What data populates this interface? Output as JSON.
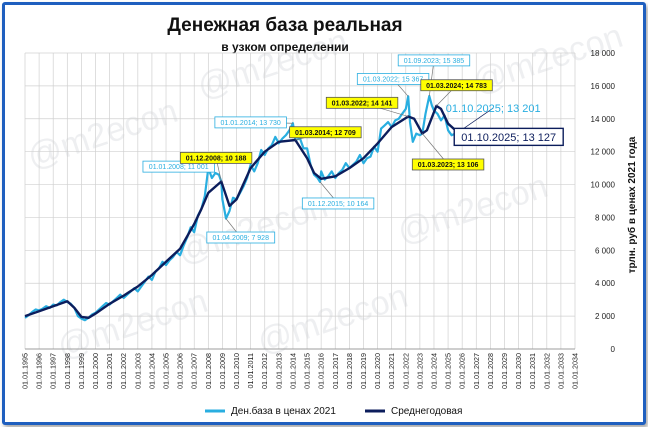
{
  "title": "Денежная база реальная",
  "subtitle": "в узком определении",
  "watermark": "@m2econ",
  "colors": {
    "series1": "#29aee0",
    "series2": "#0c1d5c",
    "highlight": "#ffff00",
    "label_text": "#29aee0",
    "frame": "#1f5fbf"
  },
  "chart_data": {
    "type": "line",
    "ylabel": "трлн. руб в ценах 2021 года",
    "ylim": [
      0,
      18000
    ],
    "yticks": [
      "0",
      "2 000",
      "4 000",
      "6 000",
      "8 000",
      "10 000",
      "12 000",
      "14 000",
      "16 000",
      "18 000"
    ],
    "xrange": [
      1995,
      2034
    ],
    "xticks": [
      "01.01.1995",
      "01.01.1996",
      "01.01.1997",
      "01.01.1998",
      "01.01.1999",
      "01.01.2000",
      "01.01.2001",
      "01.01.2002",
      "01.01.2003",
      "01.01.2004",
      "01.01.2005",
      "01.01.2006",
      "01.01.2007",
      "01.01.2008",
      "01.01.2009",
      "01.01.2010",
      "01.01.2011",
      "01.01.2012",
      "01.01.2013",
      "01.01.2014",
      "01.01.2015",
      "01.01.2016",
      "01.01.2017",
      "01.01.2018",
      "01.01.2019",
      "01.01.2020",
      "01.01.2021",
      "01.01.2022",
      "01.01.2023",
      "01.01.2024",
      "01.01.2025",
      "01.01.2026",
      "01.01.2027",
      "01.01.2028",
      "01.01.2029",
      "01.01.2030",
      "01.01.2031",
      "01.01.2032",
      "01.01.2033",
      "01.01.2034"
    ],
    "legend_position": "bottom",
    "grid": true,
    "series": [
      {
        "name": "Ден.база в ценах 2021",
        "points": [
          [
            1995.0,
            1900
          ],
          [
            1995.25,
            2050
          ],
          [
            1995.5,
            2250
          ],
          [
            1995.75,
            2400
          ],
          [
            1996.0,
            2350
          ],
          [
            1996.25,
            2450
          ],
          [
            1996.5,
            2600
          ],
          [
            1996.75,
            2500
          ],
          [
            1997.0,
            2700
          ],
          [
            1997.25,
            2650
          ],
          [
            1997.5,
            2850
          ],
          [
            1997.75,
            3000
          ],
          [
            1998.0,
            2850
          ],
          [
            1998.25,
            2750
          ],
          [
            1998.5,
            2500
          ],
          [
            1998.75,
            2000
          ],
          [
            1999.0,
            1850
          ],
          [
            1999.25,
            1750
          ],
          [
            1999.5,
            1900
          ],
          [
            1999.75,
            2100
          ],
          [
            2000.0,
            2200
          ],
          [
            2000.25,
            2400
          ],
          [
            2000.5,
            2600
          ],
          [
            2000.75,
            2800
          ],
          [
            2001.0,
            2700
          ],
          [
            2001.25,
            2900
          ],
          [
            2001.5,
            3100
          ],
          [
            2001.75,
            3300
          ],
          [
            2002.0,
            3100
          ],
          [
            2002.25,
            3300
          ],
          [
            2002.5,
            3500
          ],
          [
            2002.75,
            3700
          ],
          [
            2003.0,
            3500
          ],
          [
            2003.25,
            3800
          ],
          [
            2003.5,
            4100
          ],
          [
            2003.75,
            4400
          ],
          [
            2004.0,
            4200
          ],
          [
            2004.25,
            4700
          ],
          [
            2004.5,
            4900
          ],
          [
            2004.75,
            5300
          ],
          [
            2005.0,
            5100
          ],
          [
            2005.25,
            5400
          ],
          [
            2005.5,
            5600
          ],
          [
            2005.75,
            5900
          ],
          [
            2006.0,
            5700
          ],
          [
            2006.25,
            6300
          ],
          [
            2006.5,
            6800
          ],
          [
            2006.75,
            7400
          ],
          [
            2007.0,
            7100
          ],
          [
            2007.25,
            8100
          ],
          [
            2007.5,
            8500
          ],
          [
            2007.75,
            9300
          ],
          [
            2008.0,
            11001
          ],
          [
            2008.25,
            10400
          ],
          [
            2008.5,
            10700
          ],
          [
            2008.75,
            10600
          ],
          [
            2008.92,
            10188
          ],
          [
            2009.0,
            9100
          ],
          [
            2009.15,
            8400
          ],
          [
            2009.25,
            7928
          ],
          [
            2009.5,
            8400
          ],
          [
            2009.75,
            9200
          ],
          [
            2010.0,
            9100
          ],
          [
            2010.25,
            9500
          ],
          [
            2010.5,
            9900
          ],
          [
            2010.75,
            10400
          ],
          [
            2011.0,
            11200
          ],
          [
            2011.25,
            10800
          ],
          [
            2011.5,
            11300
          ],
          [
            2011.75,
            12100
          ],
          [
            2012.0,
            11800
          ],
          [
            2012.25,
            12200
          ],
          [
            2012.5,
            12400
          ],
          [
            2012.75,
            12900
          ],
          [
            2013.0,
            12500
          ],
          [
            2013.25,
            12800
          ],
          [
            2013.5,
            13000
          ],
          [
            2013.75,
            13300
          ],
          [
            2014.0,
            13730
          ],
          [
            2014.17,
            12709
          ],
          [
            2014.5,
            12800
          ],
          [
            2014.75,
            12200
          ],
          [
            2015.0,
            12200
          ],
          [
            2015.25,
            11200
          ],
          [
            2015.5,
            10600
          ],
          [
            2015.75,
            10400
          ],
          [
            2015.92,
            10164
          ],
          [
            2016.0,
            10800
          ],
          [
            2016.25,
            10300
          ],
          [
            2016.5,
            10500
          ],
          [
            2016.75,
            10800
          ],
          [
            2017.0,
            10400
          ],
          [
            2017.25,
            10700
          ],
          [
            2017.5,
            10900
          ],
          [
            2017.75,
            11300
          ],
          [
            2018.0,
            11000
          ],
          [
            2018.25,
            11200
          ],
          [
            2018.5,
            11400
          ],
          [
            2018.75,
            11800
          ],
          [
            2019.0,
            11300
          ],
          [
            2019.25,
            11600
          ],
          [
            2019.5,
            11700
          ],
          [
            2019.75,
            12300
          ],
          [
            2020.0,
            12000
          ],
          [
            2020.25,
            13400
          ],
          [
            2020.5,
            13600
          ],
          [
            2020.75,
            13800
          ],
          [
            2021.0,
            13500
          ],
          [
            2021.25,
            13900
          ],
          [
            2021.5,
            14000
          ],
          [
            2021.75,
            14300
          ],
          [
            2022.0,
            14600
          ],
          [
            2022.17,
            15367
          ],
          [
            2022.3,
            13800
          ],
          [
            2022.5,
            12600
          ],
          [
            2022.75,
            13100
          ],
          [
            2023.0,
            13000
          ],
          [
            2023.17,
            13106
          ],
          [
            2023.4,
            14300
          ],
          [
            2023.67,
            15385
          ],
          [
            2023.85,
            14800
          ],
          [
            2024.0,
            14500
          ],
          [
            2024.25,
            14300
          ],
          [
            2024.5,
            13900
          ],
          [
            2024.75,
            14200
          ],
          [
            2025.0,
            13300
          ],
          [
            2025.25,
            13000
          ],
          [
            2025.5,
            13100
          ],
          [
            2025.75,
            13201
          ]
        ]
      },
      {
        "name": "Среднегодовая",
        "points": [
          [
            1995.0,
            2000
          ],
          [
            1996.0,
            2300
          ],
          [
            1997.0,
            2600
          ],
          [
            1998.0,
            2900
          ],
          [
            1998.5,
            2500
          ],
          [
            1999.0,
            1950
          ],
          [
            1999.5,
            1900
          ],
          [
            2000.0,
            2150
          ],
          [
            2001.0,
            2750
          ],
          [
            2002.0,
            3250
          ],
          [
            2003.0,
            3800
          ],
          [
            2004.0,
            4500
          ],
          [
            2005.0,
            5300
          ],
          [
            2006.0,
            6100
          ],
          [
            2007.0,
            7600
          ],
          [
            2007.5,
            8500
          ],
          [
            2008.0,
            9500
          ],
          [
            2008.92,
            10188
          ],
          [
            2009.5,
            8700
          ],
          [
            2010.0,
            9100
          ],
          [
            2011.0,
            11000
          ],
          [
            2012.0,
            12000
          ],
          [
            2013.0,
            12600
          ],
          [
            2014.17,
            12709
          ],
          [
            2015.0,
            11600
          ],
          [
            2015.5,
            10700
          ],
          [
            2016.0,
            10350
          ],
          [
            2017.0,
            10500
          ],
          [
            2018.0,
            11000
          ],
          [
            2019.0,
            11600
          ],
          [
            2020.0,
            12500
          ],
          [
            2021.0,
            13500
          ],
          [
            2022.17,
            14141
          ],
          [
            2022.6,
            14000
          ],
          [
            2023.17,
            13106
          ],
          [
            2023.5,
            13300
          ],
          [
            2024.17,
            14783
          ],
          [
            2024.5,
            14600
          ],
          [
            2025.0,
            13700
          ],
          [
            2025.75,
            13127
          ]
        ]
      }
    ],
    "annotations": [
      {
        "text": "01.01.2008; 11 001",
        "x": 2008.0,
        "y": 11001,
        "style": "boxed",
        "lx": 2005.9,
        "ly": 11090
      },
      {
        "text": "01.12.2008; 10 188",
        "x": 2008.92,
        "y": 10188,
        "style": "yellow",
        "lx": 2008.55,
        "ly": 11620
      },
      {
        "text": "01.04.2009; 7 928",
        "x": 2009.25,
        "y": 7928,
        "style": "boxed",
        "lx": 2010.3,
        "ly": 6780
      },
      {
        "text": "01.01.2014; 13 730",
        "x": 2014.0,
        "y": 13730,
        "style": "boxed",
        "lx": 2011.0,
        "ly": 13780
      },
      {
        "text": "01.03.2014; 12 709",
        "x": 2014.17,
        "y": 12709,
        "style": "yellow",
        "lx": 2016.3,
        "ly": 13180
      },
      {
        "text": "01.12.2015; 10 164",
        "x": 2015.92,
        "y": 10164,
        "style": "boxed",
        "lx": 2017.2,
        "ly": 8850
      },
      {
        "text": "01.03.2022; 14 141",
        "x": 2022.17,
        "y": 14141,
        "style": "yellow",
        "lx": 2018.9,
        "ly": 14970
      },
      {
        "text": "01.03.2022; 15 367",
        "x": 2022.17,
        "y": 15367,
        "style": "boxed",
        "lx": 2021.1,
        "ly": 16420
      },
      {
        "text": "01.09.2023; 15 385",
        "x": 2023.67,
        "y": 15385,
        "style": "boxed",
        "lx": 2024.0,
        "ly": 17550
      },
      {
        "text": "01.03.2024; 14 783",
        "x": 2024.17,
        "y": 14783,
        "style": "yellow",
        "lx": 2025.6,
        "ly": 16040
      },
      {
        "text": "01.03.2023; 13 106",
        "x": 2023.17,
        "y": 13106,
        "style": "yellow",
        "lx": 2025.0,
        "ly": 11220
      },
      {
        "text": "01.10.2025; 13 201",
        "x": 2025.75,
        "y": 13201,
        "style": "big-light",
        "lx": 2028.2,
        "ly": 14650
      },
      {
        "text": "01.10.2025; 13 127",
        "x": 2025.75,
        "y": 13127,
        "style": "big-dark",
        "lx": 2029.3,
        "ly": 12900
      }
    ]
  }
}
